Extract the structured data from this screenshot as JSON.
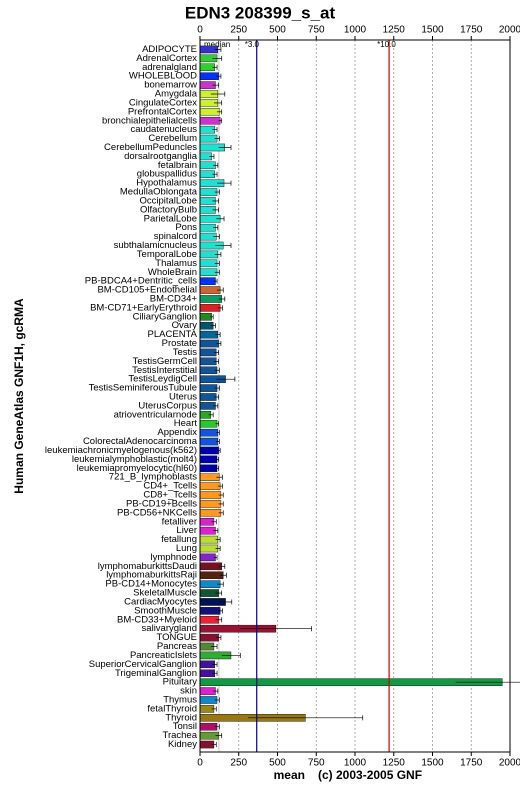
{
  "chart_data": {
    "type": "bar",
    "orientation": "horizontal",
    "title": "EDN3 208399_s_at",
    "y_label": "Human GeneAtlas GNF1H, gcRMA",
    "x_label": "mean",
    "credit": "(c) 2003-2005 GNF",
    "xlim": [
      0,
      2000
    ],
    "xticks": [
      0,
      250,
      500,
      750,
      1000,
      1250,
      1500,
      1750,
      2000
    ],
    "grid": true,
    "median": {
      "label": "median",
      "value": 122
    },
    "reference_lines": [
      {
        "label": "*3.0",
        "value": 366,
        "color": "#000080"
      },
      {
        "label": "*10.0",
        "value": 1220,
        "color": "#cc0000"
      }
    ],
    "categories": [
      "ADIPOCYTE",
      "AdrenalCortex",
      "adrenalgland",
      "WHOLEBLOOD",
      "bonemarrow",
      "Amygdala",
      "CingulateCortex",
      "PrefrontalCortex",
      "bronchialepithelialcells",
      "caudatenucleus",
      "Cerebellum",
      "CerebellumPeduncles",
      "dorsalrootganglia",
      "fetalbrain",
      "globuspallidus",
      "Hypothalamus",
      "MedullaOblongata",
      "OccipitalLobe",
      "OlfactoryBulb",
      "ParietalLobe",
      "Pons",
      "spinalcord",
      "subthalamicnucleus",
      "TemporalLobe",
      "Thalamus",
      "WholeBrain",
      "PB-BDCA4+Dentritic_cells",
      "BM-CD105+Endothelial",
      "BM-CD34+",
      "BM-CD71+EarlyErythroid",
      "CiliaryGanglion",
      "Ovary",
      "PLACENTA",
      "Prostate",
      "Testis",
      "TestisGermCell",
      "TestisInterstitial",
      "TestisLeydigCell",
      "TestisSeminiferousTubule",
      "Uterus",
      "UterusCorpus",
      "atrioventricularnode",
      "Heart",
      "Appendix",
      "ColorectalAdenocarcinoma",
      "leukemiachronicmyelogenous(k562)",
      "leukemialymphoblastic(molt4)",
      "leukemiapromyelocytic(hl60)",
      "721_B_lymphoblasts",
      "CD4+_Tcells",
      "CD8+_Tcells",
      "PB-CD19+Bcells",
      "PB-CD56+NKCells",
      "fetalliver",
      "Liver",
      "fetallung",
      "Lung",
      "lymphnode",
      "lymphomaburkittsDaudi",
      "lymphomaburkittsRaji",
      "PB-CD14+Monocytes",
      "SkeletalMuscle",
      "CardiacMyocytes",
      "SmoothMuscle",
      "BM-CD33+Myeloid",
      "salivarygland",
      "TONGUE",
      "Pancreas",
      "PancreaticIslets",
      "SuperiorCervicalGanglion",
      "TrigeminalGanglion",
      "Pituitary",
      "skin",
      "Thymus",
      "fetalThyroid",
      "Thyroid",
      "Tonsil",
      "Trachea",
      "Kidney"
    ],
    "values": [
      115,
      110,
      95,
      120,
      100,
      115,
      115,
      125,
      130,
      95,
      110,
      160,
      75,
      100,
      95,
      155,
      110,
      100,
      100,
      130,
      100,
      105,
      150,
      115,
      110,
      110,
      100,
      130,
      140,
      130,
      75,
      85,
      115,
      120,
      105,
      105,
      110,
      165,
      110,
      105,
      100,
      70,
      110,
      115,
      115,
      120,
      110,
      110,
      125,
      130,
      135,
      135,
      135,
      90,
      100,
      115,
      115,
      100,
      140,
      150,
      130,
      120,
      165,
      130,
      120,
      490,
      120,
      90,
      200,
      95,
      95,
      1950,
      100,
      110,
      90,
      680,
      110,
      120,
      90
    ],
    "errors": [
      20,
      30,
      15,
      15,
      20,
      45,
      25,
      15,
      10,
      15,
      15,
      40,
      15,
      15,
      15,
      45,
      15,
      20,
      20,
      25,
      15,
      20,
      50,
      20,
      15,
      15,
      10,
      20,
      20,
      15,
      10,
      15,
      15,
      15,
      15,
      15,
      15,
      60,
      15,
      15,
      15,
      15,
      10,
      10,
      10,
      10,
      10,
      10,
      20,
      15,
      15,
      15,
      15,
      15,
      15,
      15,
      15,
      10,
      20,
      20,
      20,
      20,
      40,
      15,
      20,
      230,
      15,
      20,
      60,
      15,
      15,
      300,
      15,
      15,
      15,
      370,
      15,
      20,
      15
    ],
    "colors": [
      "#3333cc",
      "#33cc33",
      "#33cc33",
      "#0033ff",
      "#cc33cc",
      "#ccee33",
      "#ccee33",
      "#ccee33",
      "#cc33cc",
      "#22e0d0",
      "#22e0d0",
      "#22e0d0",
      "#22e0d0",
      "#22e0d0",
      "#22e0d0",
      "#22e0d0",
      "#22e0d0",
      "#22e0d0",
      "#22e0d0",
      "#22e0d0",
      "#22e0d0",
      "#22e0d0",
      "#22e0d0",
      "#22e0d0",
      "#22e0d0",
      "#22e0d0",
      "#0033ff",
      "#cc6633",
      "#119966",
      "#dd2222",
      "#228822",
      "#005566",
      "#006699",
      "#115599",
      "#115599",
      "#115599",
      "#115599",
      "#115599",
      "#115599",
      "#115599",
      "#115599",
      "#22aa22",
      "#22cc22",
      "#1155dd",
      "#1155dd",
      "#0000aa",
      "#0000aa",
      "#0000aa",
      "#ff9922",
      "#ff9922",
      "#ff9922",
      "#ff9922",
      "#ff9922",
      "#dd22cc",
      "#dd22cc",
      "#bbdd33",
      "#bbdd33",
      "#8822cc",
      "#771122",
      "#552211",
      "#1188cc",
      "#115533",
      "#001155",
      "#111177",
      "#ee2233",
      "#991133",
      "#881133",
      "#558833",
      "#33aa33",
      "#441199",
      "#441199",
      "#119944",
      "#dd22cc",
      "#1188cc",
      "#998811",
      "#997711",
      "#aa1166",
      "#669933",
      "#881133"
    ]
  }
}
